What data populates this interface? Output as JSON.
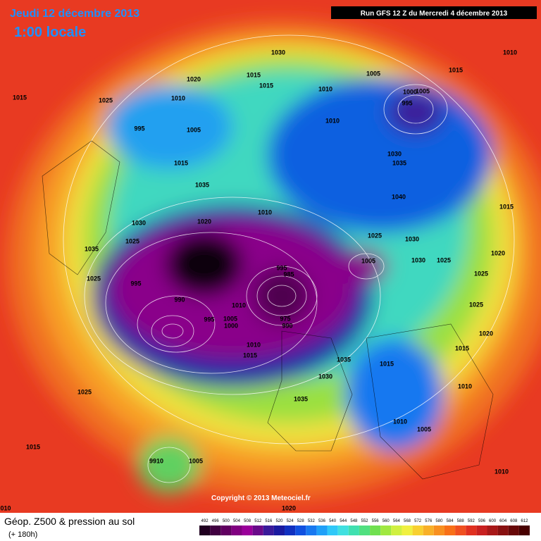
{
  "header": {
    "date": "Jeudi 12 décembre 2013",
    "time": "1:00 locale",
    "run": "Run GFS 12 Z du Mercredi 4 décembre 2013"
  },
  "footer": {
    "title": "Géop. Z500 & pression au sol",
    "subtitle": "(+ 180h)",
    "copyright": "Copyright © 2013 Meteociel.fr"
  },
  "colorbar": {
    "ticks": [
      492,
      496,
      500,
      504,
      508,
      512,
      516,
      520,
      524,
      528,
      532,
      536,
      540,
      544,
      548,
      552,
      556,
      560,
      564,
      568,
      572,
      576,
      580,
      584,
      588,
      592,
      596,
      600,
      604,
      608,
      612
    ],
    "colors": [
      "#200020",
      "#400040",
      "#600060",
      "#800080",
      "#9a009a",
      "#6a0a8a",
      "#3a1a9a",
      "#1a1aa0",
      "#1030c0",
      "#1050e0",
      "#1878f0",
      "#20a0f8",
      "#30c8f8",
      "#40e0e0",
      "#40e0b0",
      "#50e080",
      "#70e050",
      "#a0e840",
      "#d0f040",
      "#f0f040",
      "#f8d030",
      "#f8b028",
      "#f89020",
      "#f87018",
      "#f05020",
      "#e03020",
      "#c82020",
      "#a81818",
      "#881010",
      "#680808",
      "#480000"
    ]
  },
  "isobar_labels": [
    "1030",
    "1010",
    "1015",
    "1020",
    "1005",
    "1015",
    "1015",
    "1010",
    "1025",
    "1015",
    "1010",
    "1000",
    "1005",
    "995",
    "1010",
    "995",
    "1005",
    "1030",
    "1035",
    "1015",
    "1035",
    "1040",
    "1015",
    "1010",
    "1030",
    "1020",
    "1025",
    "1030",
    "1025",
    "1035",
    "1020",
    "1005",
    "1030",
    "1025",
    "995",
    "985",
    "1025",
    "1025",
    "995",
    "990",
    "1025",
    "1010",
    "995",
    "1005",
    "975",
    "990",
    "1000",
    "1020",
    "1010",
    "1015",
    "1015",
    "1035",
    "1015",
    "1030",
    "1010",
    "1025",
    "1035",
    "1010",
    "1005",
    "1015",
    "9910",
    "1005",
    "1010",
    "1020",
    "010"
  ]
}
